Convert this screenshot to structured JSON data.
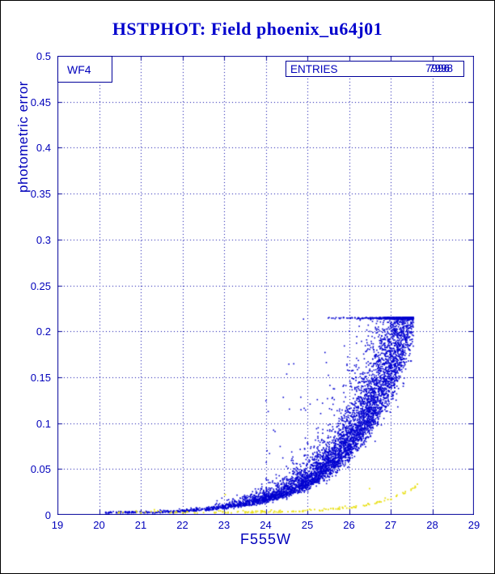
{
  "title": "HSTPHOT: Field phoenix_u64j01",
  "panel_label": "WF4",
  "entries": {
    "label": "ENTRIES",
    "values": [
      "7998",
      "7996"
    ]
  },
  "colors": {
    "background": "#ffffff",
    "frame": "#000099",
    "grid": "#0000a6",
    "text": "#0000bb",
    "title": "#0000cd",
    "blue_points": "#0000d0",
    "yellow_points": "#e8df12"
  },
  "chart_data": {
    "type": "scatter",
    "title": "HSTPHOT: Field phoenix_u64j01",
    "xlabel": "F555W",
    "ylabel": "photometric error",
    "xlim": [
      19,
      29
    ],
    "ylim": [
      0,
      0.5
    ],
    "x_ticks": [
      "19",
      "20",
      "21",
      "22",
      "23",
      "24",
      "25",
      "26",
      "27",
      "28",
      "29"
    ],
    "y_ticks": [
      "0",
      "0.05",
      "0.1",
      "0.15",
      "0.2",
      "0.25",
      "0.3",
      "0.35",
      "0.4",
      "0.45",
      "0.5"
    ],
    "grid": "dotted",
    "legend_position": "none",
    "error_cap": 0.215,
    "faint_limit_mag": 27.55,
    "locus_points_blue": [
      [
        22,
        0.0034
      ],
      [
        23,
        0.0072
      ],
      [
        24,
        0.015
      ],
      [
        25,
        0.032
      ],
      [
        26,
        0.066
      ],
      [
        26.5,
        0.095
      ],
      [
        27,
        0.138
      ],
      [
        27.5,
        0.2
      ],
      [
        27.55,
        0.215
      ]
    ],
    "locus_points_yellow": [
      [
        20.5,
        0.002
      ],
      [
        24,
        0.0025
      ],
      [
        26,
        0.007
      ],
      [
        27,
        0.016
      ],
      [
        27.6,
        0.031
      ]
    ],
    "series": [
      {
        "name": "blue",
        "color": "#0000d0",
        "n": 6000,
        "marker_px": 1.6,
        "model": {
          "type": "locus_scatter",
          "base": 0,
          "e_ref": 0.2,
          "m_ref": 27.5,
          "scale": 1.35,
          "m_min": 21.2,
          "m_span": 6.36,
          "m_pow": 0.38,
          "bright_frac": 0.025,
          "bright_min": 20.0,
          "spread_up": 0.3,
          "spread_sym": 0.1,
          "noise": 0,
          "outlier_prob": 0.035,
          "outlier_min_m": 24,
          "outlier_mode": "mul",
          "outlier_amp": 0,
          "floor": 0.0025,
          "cap": 0.215,
          "m_max": 27.55,
          "seed": 1234
        }
      },
      {
        "name": "yellow",
        "color": "#e8df12",
        "n": 155,
        "marker_px": 1.8,
        "model": {
          "type": "locus_scatter",
          "base": 0.0018,
          "e_ref": 0.028,
          "m_ref": 27.6,
          "scale": 0.95,
          "m_min": 20.2,
          "m_span": 7.45,
          "m_pow": 0.75,
          "bright_frac": 0,
          "bright_min": 0,
          "spread_up": 0,
          "spread_sym": 0,
          "noise": 0.0013,
          "outlier_prob": 0.05,
          "outlier_min_m": 23,
          "outlier_mode": "add",
          "outlier_amp": 0.02,
          "floor": 0.0012,
          "cap": 0.05,
          "m_max": 27.65,
          "seed": 99
        }
      }
    ]
  }
}
